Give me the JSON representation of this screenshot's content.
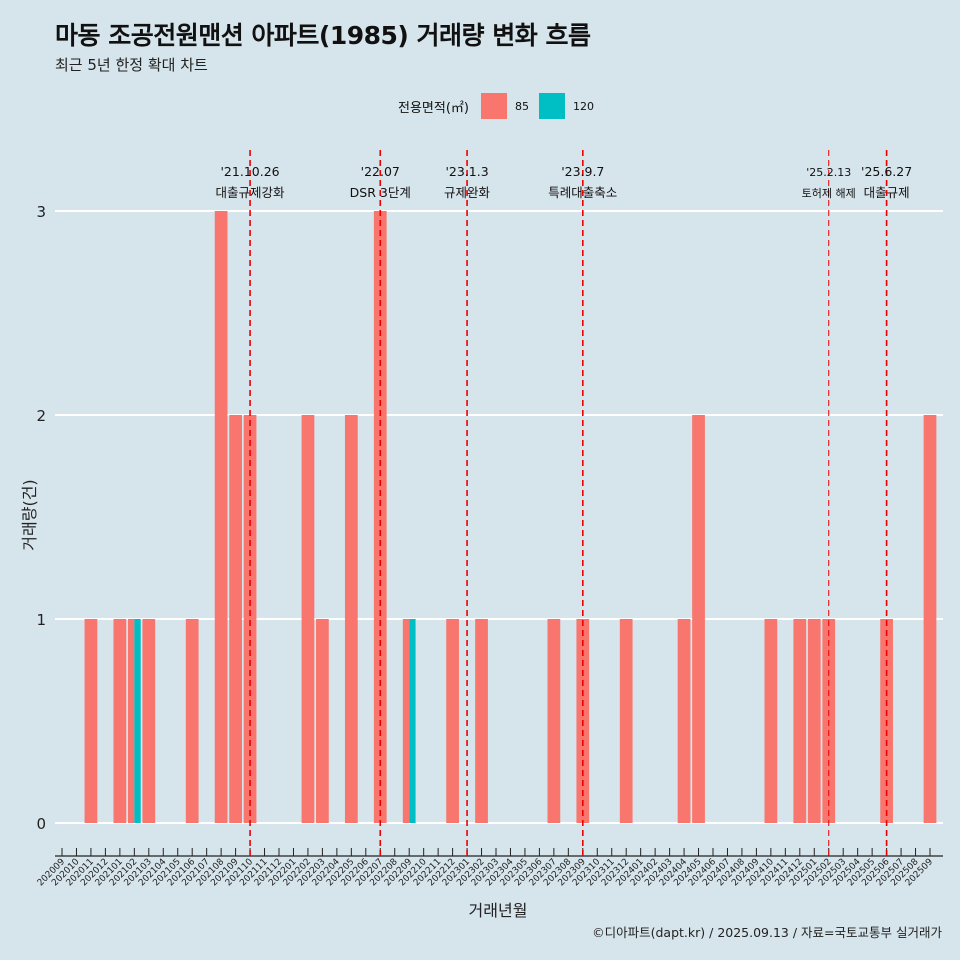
{
  "title": "마동 조공전원맨션 아파트(1985) 거래량 변화 흐름",
  "subtitle": "최근 5년 한정 확대 차트",
  "caption": "©디아파트(dapt.kr) / 2025.09.13 / 자료=국토교통부 실거래가",
  "colors": {
    "background": "#d6e4eb",
    "series_85": "#f8766d",
    "series_120": "#00bfc4",
    "event_line": "#ee0000",
    "grid": "#ffffff"
  },
  "chart_data": {
    "type": "bar",
    "xlabel": "거래년월",
    "ylabel": "거래량(건)",
    "ylim": [
      0,
      3
    ],
    "yticks": [
      "0",
      "1",
      "2",
      "3"
    ],
    "grid": "horizontal",
    "legend": {
      "title": "전용면적(㎡)",
      "position": "top"
    },
    "categories": [
      "202009",
      "202010",
      "202011",
      "202012",
      "202101",
      "202102",
      "202103",
      "202104",
      "202105",
      "202106",
      "202107",
      "202108",
      "202109",
      "202110",
      "202111",
      "202112",
      "202201",
      "202202",
      "202203",
      "202204",
      "202205",
      "202206",
      "202207",
      "202208",
      "202209",
      "202210",
      "202211",
      "202212",
      "202301",
      "202302",
      "202303",
      "202304",
      "202305",
      "202306",
      "202307",
      "202308",
      "202309",
      "202310",
      "202311",
      "202312",
      "202401",
      "202402",
      "202403",
      "202404",
      "202405",
      "202406",
      "202407",
      "202408",
      "202409",
      "202410",
      "202411",
      "202412",
      "202501",
      "202502",
      "202503",
      "202504",
      "202505",
      "202506",
      "202507",
      "202508",
      "202509"
    ],
    "series": [
      {
        "name": "85",
        "values": [
          0,
          0,
          1,
          0,
          1,
          1,
          1,
          0,
          0,
          1,
          0,
          3,
          2,
          2,
          0,
          0,
          0,
          2,
          1,
          0,
          2,
          0,
          3,
          0,
          1,
          0,
          0,
          1,
          0,
          1,
          0,
          0,
          0,
          0,
          1,
          0,
          1,
          0,
          0,
          1,
          0,
          0,
          0,
          1,
          2,
          0,
          0,
          0,
          0,
          1,
          0,
          1,
          1,
          1,
          0,
          0,
          0,
          1,
          0,
          0,
          2
        ]
      },
      {
        "name": "120",
        "values": [
          0,
          0,
          0,
          0,
          0,
          1,
          0,
          0,
          0,
          0,
          0,
          0,
          0,
          0,
          0,
          0,
          0,
          0,
          0,
          0,
          0,
          0,
          0,
          0,
          1,
          0,
          0,
          0,
          0,
          0,
          0,
          0,
          0,
          0,
          0,
          0,
          0,
          0,
          0,
          0,
          0,
          0,
          0,
          0,
          0,
          0,
          0,
          0,
          0,
          0,
          0,
          0,
          0,
          0,
          0,
          0,
          0,
          0,
          0,
          0,
          0
        ]
      }
    ],
    "events": [
      {
        "x": "202110",
        "date": "'21.10.26",
        "label": "대출규제강화"
      },
      {
        "x": "202207",
        "date": "'22.07",
        "label": "DSR 3단계"
      },
      {
        "x": "202301",
        "date": "'23.1.3",
        "label": "규제완화"
      },
      {
        "x": "202309",
        "date": "'23.9.7",
        "label": "특례대출축소"
      },
      {
        "x": "202502",
        "date": "'25.2.13",
        "label": "토허제 해제"
      },
      {
        "x": "202506",
        "date": "'25.6.27",
        "label": "대출규제"
      }
    ]
  }
}
